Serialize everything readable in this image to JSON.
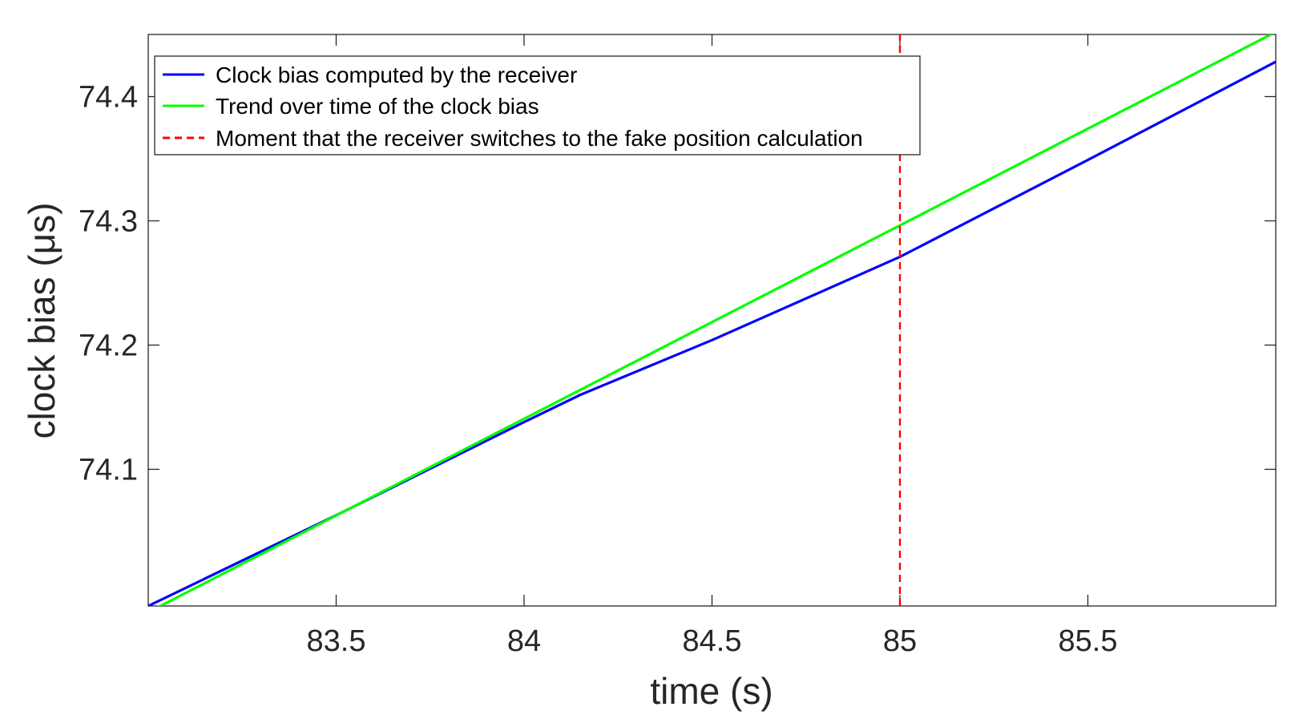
{
  "chart_data": {
    "type": "line",
    "title": "",
    "xlabel": "time (s)",
    "ylabel": "clock bias (μs)",
    "xlim": [
      83.0,
      86.0
    ],
    "ylim": [
      73.99,
      74.45
    ],
    "xticks": [
      83.5,
      84,
      84.5,
      85,
      85.5
    ],
    "xtick_labels": [
      "83.5",
      "84",
      "84.5",
      "85",
      "85.5"
    ],
    "yticks": [
      74.1,
      74.2,
      74.3,
      74.4
    ],
    "ytick_labels": [
      "74.1",
      "74.2",
      "74.3",
      "74.4"
    ],
    "grid": false,
    "legend_position": "top-left",
    "series": [
      {
        "name": "Clock bias computed by the receiver",
        "color": "#0000ff",
        "style": "solid",
        "x": [
          83.0,
          83.5,
          84.0,
          84.15,
          84.5,
          85.0,
          85.5,
          86.0
        ],
        "y": [
          73.99,
          74.063,
          74.138,
          74.16,
          74.204,
          74.271,
          74.349,
          74.428
        ]
      },
      {
        "name": "Trend over time of the clock bias",
        "color": "#00ff00",
        "style": "solid",
        "x": [
          83.0,
          86.0
        ],
        "y": [
          73.985,
          74.452
        ]
      },
      {
        "name": "Moment that the receiver switches to the fake position calculation",
        "color": "#ff0000",
        "style": "dashed",
        "x": [
          85.0,
          85.0
        ],
        "y": [
          73.99,
          74.45
        ]
      }
    ]
  }
}
